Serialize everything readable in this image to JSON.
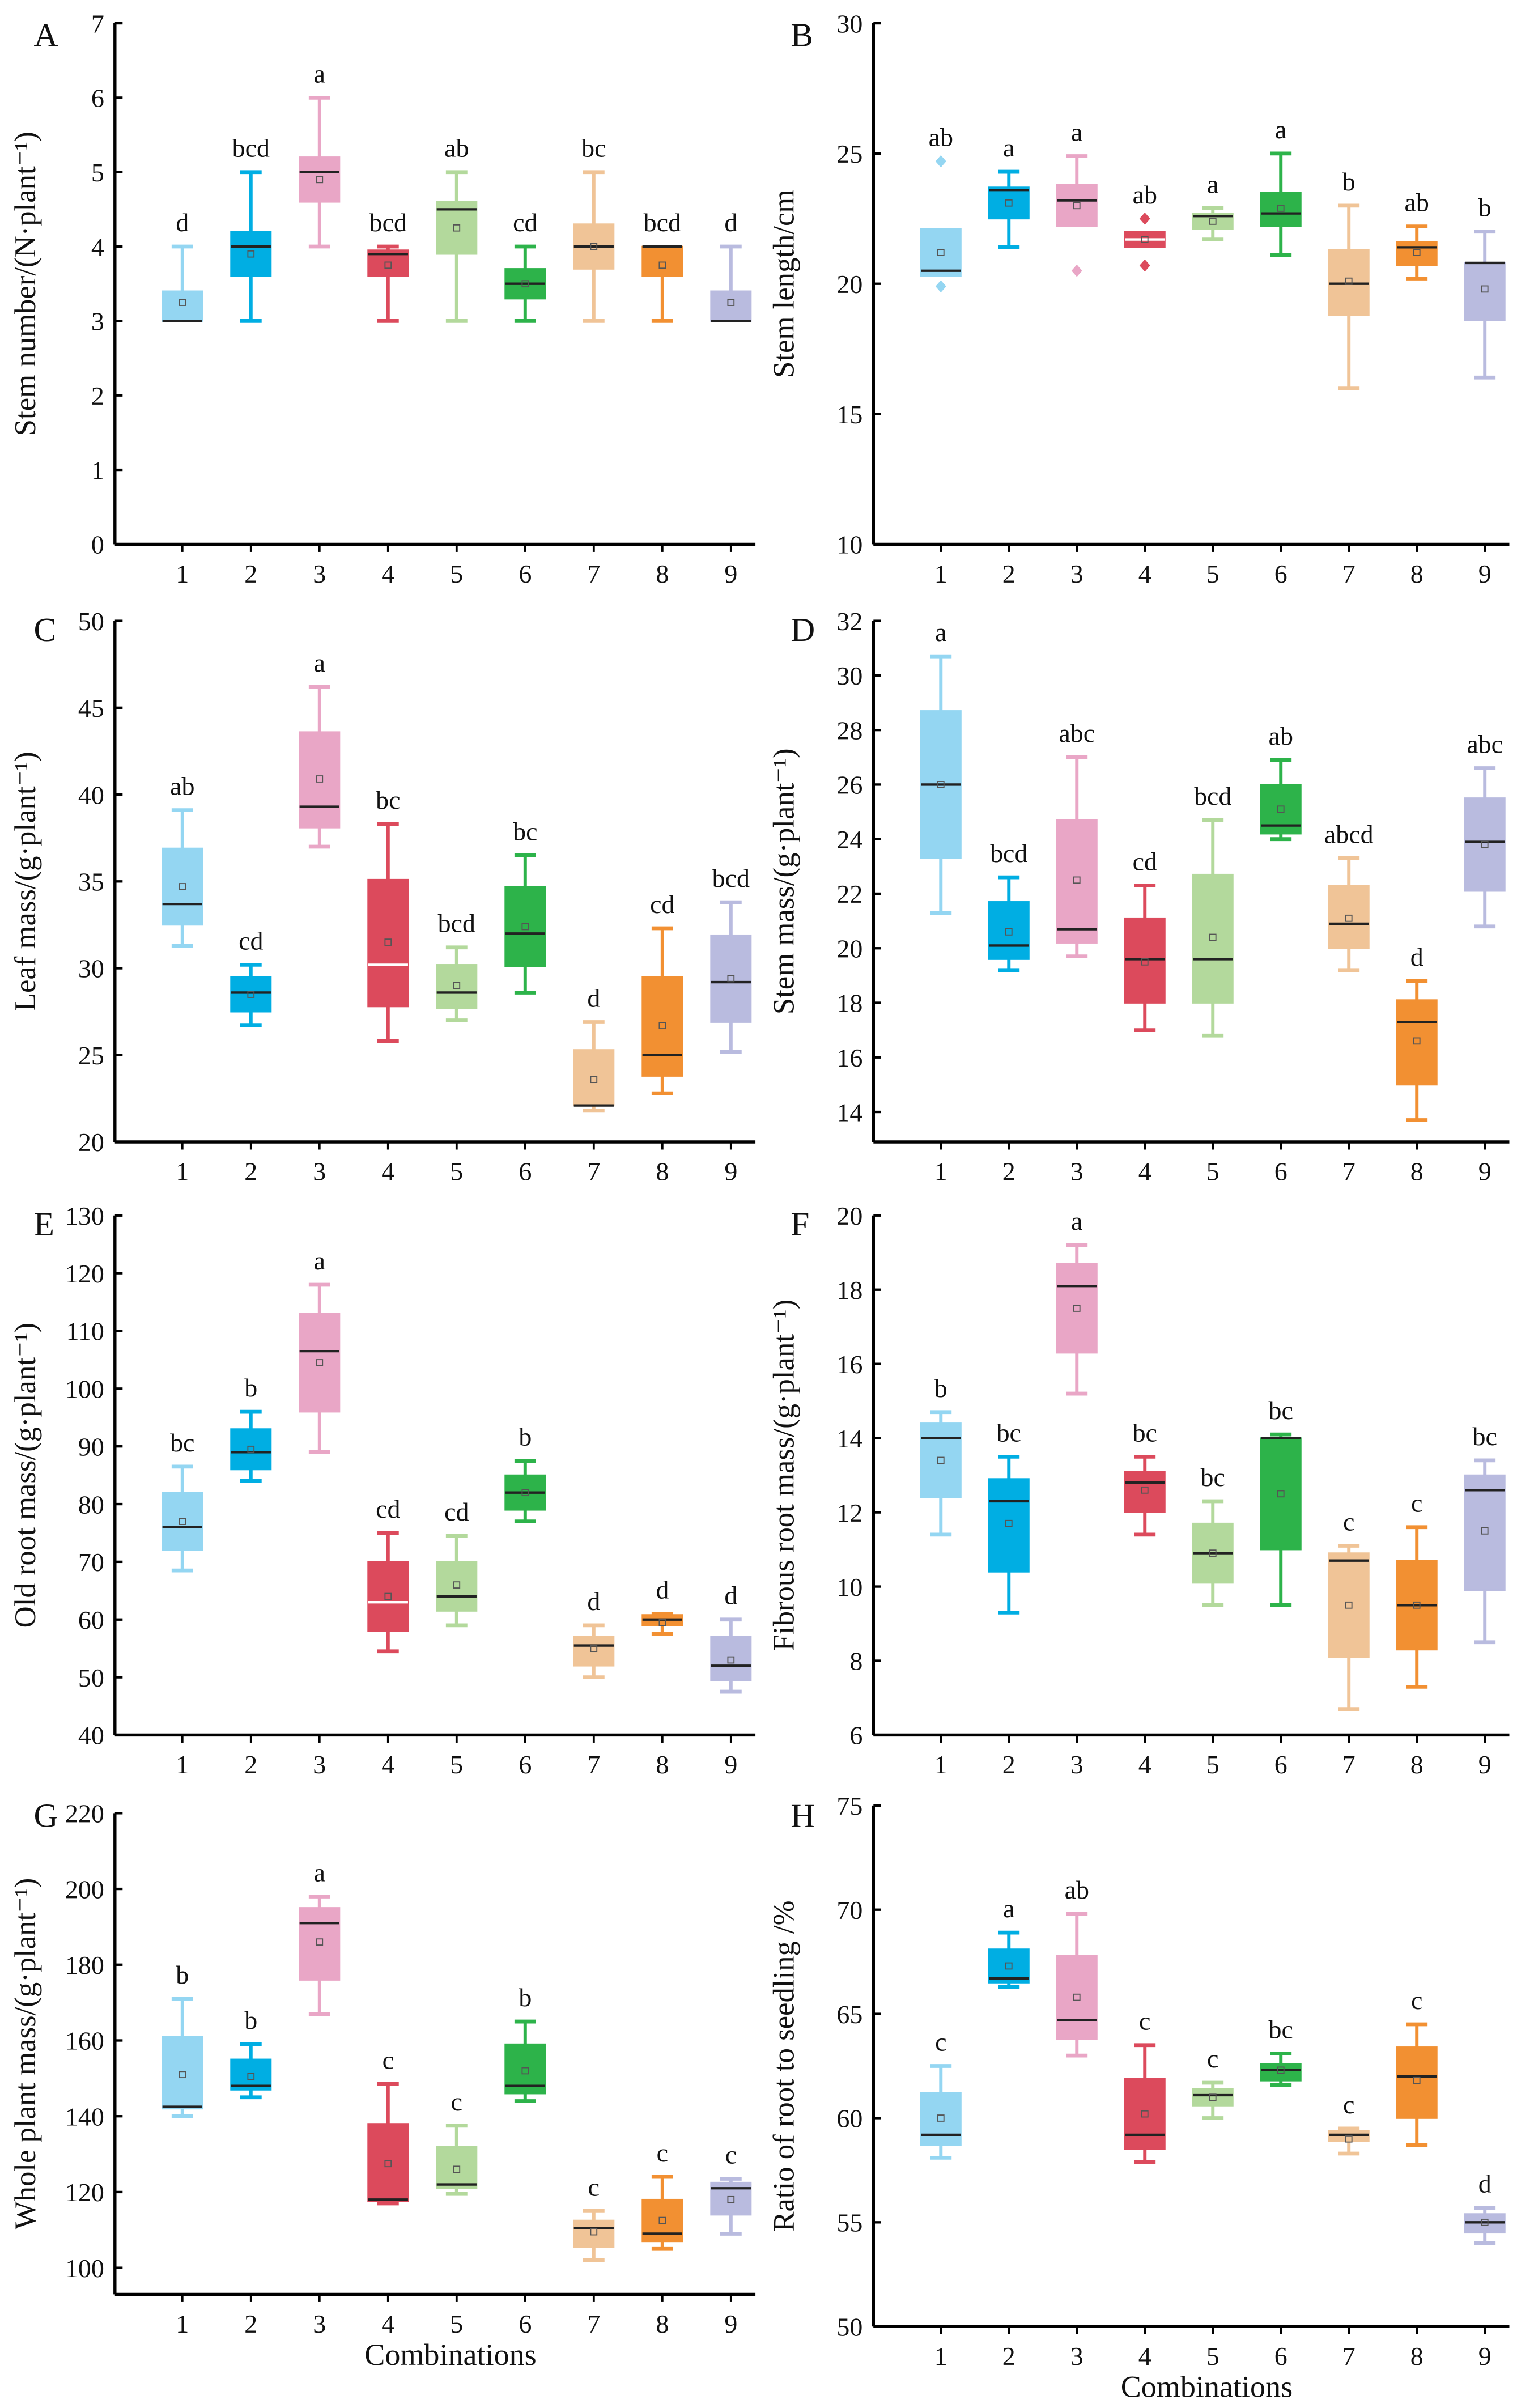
{
  "stat_order": [
    "min",
    "q1",
    "median",
    "q3",
    "max",
    "mean"
  ],
  "colors": [
    "#94d6f2",
    "#00aee3",
    "#e9a6c6",
    "#dc4a5c",
    "#b3d99c",
    "#2db34a",
    "#f0c497",
    "#f29032",
    "#b9bbdf"
  ],
  "chart_data": [
    {
      "panel": "A",
      "type": "box",
      "ylabel": "Stem number/(N·plant⁻¹)",
      "xlabel": "",
      "ylim": [
        0,
        7
      ],
      "yticks": [
        0,
        1,
        2,
        3,
        4,
        5,
        6,
        7
      ],
      "categories": [
        "1",
        "2",
        "3",
        "4",
        "5",
        "6",
        "7",
        "8",
        "9"
      ],
      "boxes": [
        {
          "stats": [
            3,
            3,
            3,
            3.4,
            4,
            3.25
          ],
          "letter": "d"
        },
        {
          "stats": [
            3,
            3.6,
            4,
            4.2,
            5,
            3.9
          ],
          "letter": "bcd"
        },
        {
          "stats": [
            4,
            4.6,
            5,
            5.2,
            6,
            4.9
          ],
          "letter": "a"
        },
        {
          "stats": [
            3,
            3.6,
            3.9,
            3.95,
            4,
            3.75
          ],
          "letter": "bcd"
        },
        {
          "stats": [
            3,
            3.9,
            4.5,
            4.6,
            5,
            4.25
          ],
          "letter": "ab"
        },
        {
          "stats": [
            3,
            3.3,
            3.5,
            3.7,
            4,
            3.5
          ],
          "letter": "cd"
        },
        {
          "stats": [
            3,
            3.7,
            4,
            4.3,
            5,
            4
          ],
          "letter": "bc"
        },
        {
          "stats": [
            3,
            3.6,
            4,
            4,
            4,
            3.75
          ],
          "letter": "bcd"
        },
        {
          "stats": [
            3,
            3,
            3,
            3.4,
            4,
            3.25
          ],
          "letter": "d"
        }
      ]
    },
    {
      "panel": "B",
      "type": "box",
      "ylabel": "Stem length/cm",
      "xlabel": "",
      "ylim": [
        10,
        30
      ],
      "yticks": [
        10,
        15,
        20,
        25,
        30
      ],
      "categories": [
        "1",
        "2",
        "3",
        "4",
        "5",
        "6",
        "7",
        "8",
        "9"
      ],
      "boxes": [
        {
          "stats": [
            20.3,
            20.3,
            20.5,
            22.1,
            22.1,
            21.2
          ],
          "outliers": [
            24.7,
            19.9
          ],
          "letter": "ab"
        },
        {
          "stats": [
            21.4,
            22.5,
            23.6,
            23.7,
            24.3,
            23.1
          ],
          "letter": "a"
        },
        {
          "stats": [
            22.2,
            22.2,
            23.2,
            23.8,
            24.9,
            23.0
          ],
          "outliers": [
            20.5
          ],
          "letter": "a"
        },
        {
          "stats": [
            21.4,
            21.4,
            21.7,
            22.0,
            22.0,
            21.7
          ],
          "outliers": [
            22.5,
            20.7
          ],
          "letter": "ab"
        },
        {
          "stats": [
            21.7,
            22.1,
            22.6,
            22.7,
            22.9,
            22.4
          ],
          "letter": "a"
        },
        {
          "stats": [
            21.1,
            22.2,
            22.7,
            23.5,
            25,
            22.9
          ],
          "letter": "a"
        },
        {
          "stats": [
            16,
            18.8,
            20,
            21.3,
            23,
            20.1
          ],
          "letter": "b"
        },
        {
          "stats": [
            20.2,
            20.7,
            21.4,
            21.6,
            22.2,
            21.2
          ],
          "letter": "ab"
        },
        {
          "stats": [
            16.4,
            18.6,
            20.8,
            20.8,
            22,
            19.8
          ],
          "letter": "b"
        }
      ]
    },
    {
      "panel": "C",
      "type": "box",
      "ylabel": "Leaf mass/(g·plant⁻¹)",
      "xlabel": "",
      "ylim": [
        20,
        50
      ],
      "yticks": [
        20,
        25,
        30,
        35,
        40,
        45,
        50
      ],
      "categories": [
        "1",
        "2",
        "3",
        "4",
        "5",
        "6",
        "7",
        "8",
        "9"
      ],
      "boxes": [
        {
          "stats": [
            31.3,
            32.5,
            33.7,
            36.9,
            39.1,
            34.7
          ],
          "letter": "ab"
        },
        {
          "stats": [
            26.7,
            27.5,
            28.6,
            29.5,
            30.2,
            28.5
          ],
          "letter": "cd"
        },
        {
          "stats": [
            37,
            38.1,
            39.3,
            43.6,
            46.2,
            40.9
          ],
          "letter": "a"
        },
        {
          "stats": [
            25.8,
            27.8,
            30.2,
            35.1,
            38.3,
            31.5
          ],
          "letter": "bc"
        },
        {
          "stats": [
            27,
            27.7,
            28.6,
            30.2,
            31.2,
            29
          ],
          "letter": "bcd"
        },
        {
          "stats": [
            28.6,
            30.1,
            32,
            34.7,
            36.5,
            32.4
          ],
          "letter": "bc"
        },
        {
          "stats": [
            21.8,
            22.1,
            22.1,
            25.3,
            26.9,
            23.6
          ],
          "letter": "d"
        },
        {
          "stats": [
            22.8,
            23.8,
            25,
            29.5,
            32.3,
            26.7
          ],
          "letter": "cd"
        },
        {
          "stats": [
            25.2,
            26.9,
            29.2,
            31.9,
            33.8,
            29.4
          ],
          "letter": "bcd"
        }
      ]
    },
    {
      "panel": "D",
      "type": "box",
      "ylabel": "Stem mass/(g·plant⁻¹)",
      "xlabel": "",
      "ylim": [
        12.9,
        32
      ],
      "yticks": [
        14,
        16,
        18,
        20,
        22,
        24,
        26,
        28,
        30,
        32
      ],
      "categories": [
        "1",
        "2",
        "3",
        "4",
        "5",
        "6",
        "7",
        "8",
        "9"
      ],
      "boxes": [
        {
          "stats": [
            21.3,
            23.3,
            26,
            28.7,
            30.7,
            26
          ],
          "letter": "a"
        },
        {
          "stats": [
            19.2,
            19.6,
            20.1,
            21.7,
            22.6,
            20.6
          ],
          "letter": "bcd"
        },
        {
          "stats": [
            19.7,
            20.2,
            20.7,
            24.7,
            27,
            22.5
          ],
          "letter": "abc"
        },
        {
          "stats": [
            17,
            18,
            19.6,
            21.1,
            22.3,
            19.5
          ],
          "letter": "cd"
        },
        {
          "stats": [
            16.8,
            18,
            19.6,
            22.7,
            24.7,
            20.4
          ],
          "letter": "bcd"
        },
        {
          "stats": [
            24,
            24.2,
            24.5,
            26,
            26.9,
            25.1
          ],
          "letter": "ab"
        },
        {
          "stats": [
            19.2,
            20,
            20.9,
            22.3,
            23.3,
            21.1
          ],
          "letter": "abcd"
        },
        {
          "stats": [
            13.7,
            15,
            17.3,
            18.1,
            18.8,
            16.6
          ],
          "letter": "d"
        },
        {
          "stats": [
            20.8,
            22.1,
            23.9,
            25.5,
            26.6,
            23.8
          ],
          "letter": "abc"
        }
      ]
    },
    {
      "panel": "E",
      "type": "box",
      "ylabel": "Old root mass/(g·plant⁻¹)",
      "xlabel": "",
      "ylim": [
        40,
        130
      ],
      "yticks": [
        40,
        50,
        60,
        70,
        80,
        90,
        100,
        110,
        120,
        130
      ],
      "categories": [
        "1",
        "2",
        "3",
        "4",
        "5",
        "6",
        "7",
        "8",
        "9"
      ],
      "boxes": [
        {
          "stats": [
            68.5,
            72,
            76,
            82,
            86.5,
            77
          ],
          "letter": "bc"
        },
        {
          "stats": [
            84,
            86,
            89,
            93,
            96,
            89.5
          ],
          "letter": "b"
        },
        {
          "stats": [
            89,
            96,
            106.5,
            113,
            118,
            104.5
          ],
          "letter": "a"
        },
        {
          "stats": [
            54.5,
            58,
            63,
            70,
            75,
            64
          ],
          "letter": "cd"
        },
        {
          "stats": [
            59,
            61.5,
            64,
            70,
            74.5,
            66
          ],
          "letter": "cd"
        },
        {
          "stats": [
            77,
            79,
            82,
            85,
            87.5,
            82
          ],
          "letter": "b"
        },
        {
          "stats": [
            50,
            52,
            55.5,
            57,
            59,
            55
          ],
          "letter": "d"
        },
        {
          "stats": [
            57.5,
            59,
            60,
            60.8,
            61,
            59.5
          ],
          "letter": "d"
        },
        {
          "stats": [
            47.5,
            49.5,
            52,
            57,
            60,
            53
          ],
          "letter": "d"
        }
      ]
    },
    {
      "panel": "F",
      "type": "box",
      "ylabel": "Fibrous root mass/(g·plant⁻¹)",
      "xlabel": "",
      "ylim": [
        6,
        20
      ],
      "yticks": [
        6,
        8,
        10,
        12,
        14,
        16,
        18,
        20
      ],
      "categories": [
        "1",
        "2",
        "3",
        "4",
        "5",
        "6",
        "7",
        "8",
        "9"
      ],
      "boxes": [
        {
          "stats": [
            11.4,
            12.4,
            14,
            14.4,
            14.7,
            13.4
          ],
          "letter": "b"
        },
        {
          "stats": [
            9.3,
            10.4,
            12.3,
            12.9,
            13.5,
            11.7
          ],
          "letter": "bc"
        },
        {
          "stats": [
            15.2,
            16.3,
            18.1,
            18.7,
            19.2,
            17.5
          ],
          "letter": "a"
        },
        {
          "stats": [
            11.4,
            12,
            12.8,
            13.1,
            13.5,
            12.6
          ],
          "letter": "bc"
        },
        {
          "stats": [
            9.5,
            10.1,
            10.9,
            11.7,
            12.3,
            10.9
          ],
          "letter": "bc"
        },
        {
          "stats": [
            9.5,
            11,
            14,
            14,
            14.1,
            12.5
          ],
          "letter": "bc"
        },
        {
          "stats": [
            6.7,
            8.1,
            10.7,
            10.9,
            11.1,
            9.5
          ],
          "letter": "c"
        },
        {
          "stats": [
            7.3,
            8.3,
            9.5,
            10.7,
            11.6,
            9.5
          ],
          "letter": "c"
        },
        {
          "stats": [
            8.5,
            9.9,
            12.6,
            13,
            13.4,
            11.5
          ],
          "letter": "bc"
        }
      ]
    },
    {
      "panel": "G",
      "type": "box",
      "ylabel": "Whole plant mass/(g·plant⁻¹)",
      "xlabel": "Combinations",
      "ylim": [
        93,
        220
      ],
      "yticks": [
        100,
        120,
        140,
        160,
        180,
        200,
        220
      ],
      "categories": [
        "1",
        "2",
        "3",
        "4",
        "5",
        "6",
        "7",
        "8",
        "9"
      ],
      "boxes": [
        {
          "stats": [
            140,
            142,
            142.5,
            161,
            171,
            151
          ],
          "letter": "b"
        },
        {
          "stats": [
            145,
            147,
            148,
            155,
            159,
            150.5
          ],
          "letter": "b"
        },
        {
          "stats": [
            167,
            176,
            191,
            195,
            198,
            186
          ],
          "letter": "a"
        },
        {
          "stats": [
            117,
            117.5,
            118,
            138,
            148.5,
            127.5
          ],
          "letter": "c"
        },
        {
          "stats": [
            119.5,
            121,
            122,
            132,
            137.5,
            126
          ],
          "letter": "c"
        },
        {
          "stats": [
            144,
            146,
            148,
            159,
            165,
            152
          ],
          "letter": "b"
        },
        {
          "stats": [
            102,
            105.5,
            110.5,
            112.5,
            115,
            109.5
          ],
          "letter": "c"
        },
        {
          "stats": [
            105,
            107,
            109,
            118,
            124,
            112.5
          ],
          "letter": "c"
        },
        {
          "stats": [
            109,
            114,
            121,
            122.5,
            123.5,
            118
          ],
          "letter": "c"
        }
      ]
    },
    {
      "panel": "H",
      "type": "box",
      "ylabel": "Ratio of root to seedling /%",
      "xlabel": "Combinations",
      "ylim": [
        50,
        75
      ],
      "yticks": [
        50,
        55,
        60,
        65,
        70,
        75
      ],
      "categories": [
        "1",
        "2",
        "3",
        "4",
        "5",
        "6",
        "7",
        "8",
        "9"
      ],
      "boxes": [
        {
          "stats": [
            58.1,
            58.7,
            59.2,
            61.2,
            62.5,
            60
          ],
          "letter": "c"
        },
        {
          "stats": [
            66.3,
            66.5,
            66.7,
            68.1,
            68.9,
            67.3
          ],
          "letter": "a"
        },
        {
          "stats": [
            63,
            63.8,
            64.7,
            67.8,
            69.8,
            65.8
          ],
          "letter": "ab"
        },
        {
          "stats": [
            57.9,
            58.5,
            59.2,
            61.9,
            63.5,
            60.2
          ],
          "letter": "c"
        },
        {
          "stats": [
            60,
            60.6,
            61.1,
            61.4,
            61.7,
            61
          ],
          "letter": "c"
        },
        {
          "stats": [
            61.6,
            61.8,
            62.3,
            62.6,
            63.1,
            62.3
          ],
          "letter": "bc"
        },
        {
          "stats": [
            58.3,
            58.9,
            59.2,
            59.4,
            59.5,
            59
          ],
          "letter": "c"
        },
        {
          "stats": [
            58.7,
            60,
            62,
            63.4,
            64.5,
            61.8
          ],
          "letter": "c"
        },
        {
          "stats": [
            54,
            54.5,
            55,
            55.4,
            55.7,
            55
          ],
          "letter": "d"
        }
      ]
    }
  ]
}
